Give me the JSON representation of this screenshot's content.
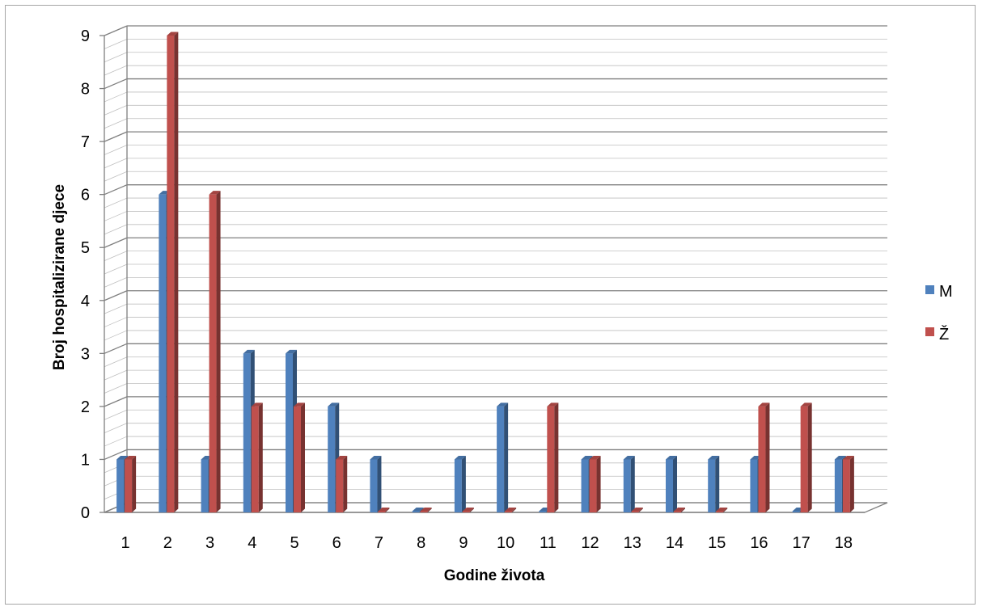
{
  "chart_data": {
    "type": "bar",
    "title": "",
    "xlabel": "Godine života",
    "ylabel": "Broj hospitalizirane djece",
    "categories": [
      "1",
      "2",
      "3",
      "4",
      "5",
      "6",
      "7",
      "8",
      "9",
      "10",
      "11",
      "12",
      "13",
      "14",
      "15",
      "16",
      "17",
      "18"
    ],
    "series": [
      {
        "name": "M",
        "values": [
          1,
          6,
          1,
          3,
          3,
          2,
          1,
          0,
          1,
          2,
          0,
          1,
          1,
          1,
          1,
          1,
          0,
          1
        ]
      },
      {
        "name": "Ž",
        "values": [
          1,
          9,
          6,
          2,
          2,
          1,
          0,
          0,
          0,
          0,
          2,
          1,
          0,
          0,
          0,
          2,
          2,
          1
        ]
      }
    ],
    "ylim": [
      0,
      9
    ],
    "yticks": [
      "0",
      "1",
      "2",
      "3",
      "4",
      "5",
      "6",
      "7",
      "8",
      "9"
    ],
    "grid": true,
    "legend_position": "right",
    "colors": {
      "M": "#4f81bd",
      "Ž": "#c0504d"
    }
  }
}
